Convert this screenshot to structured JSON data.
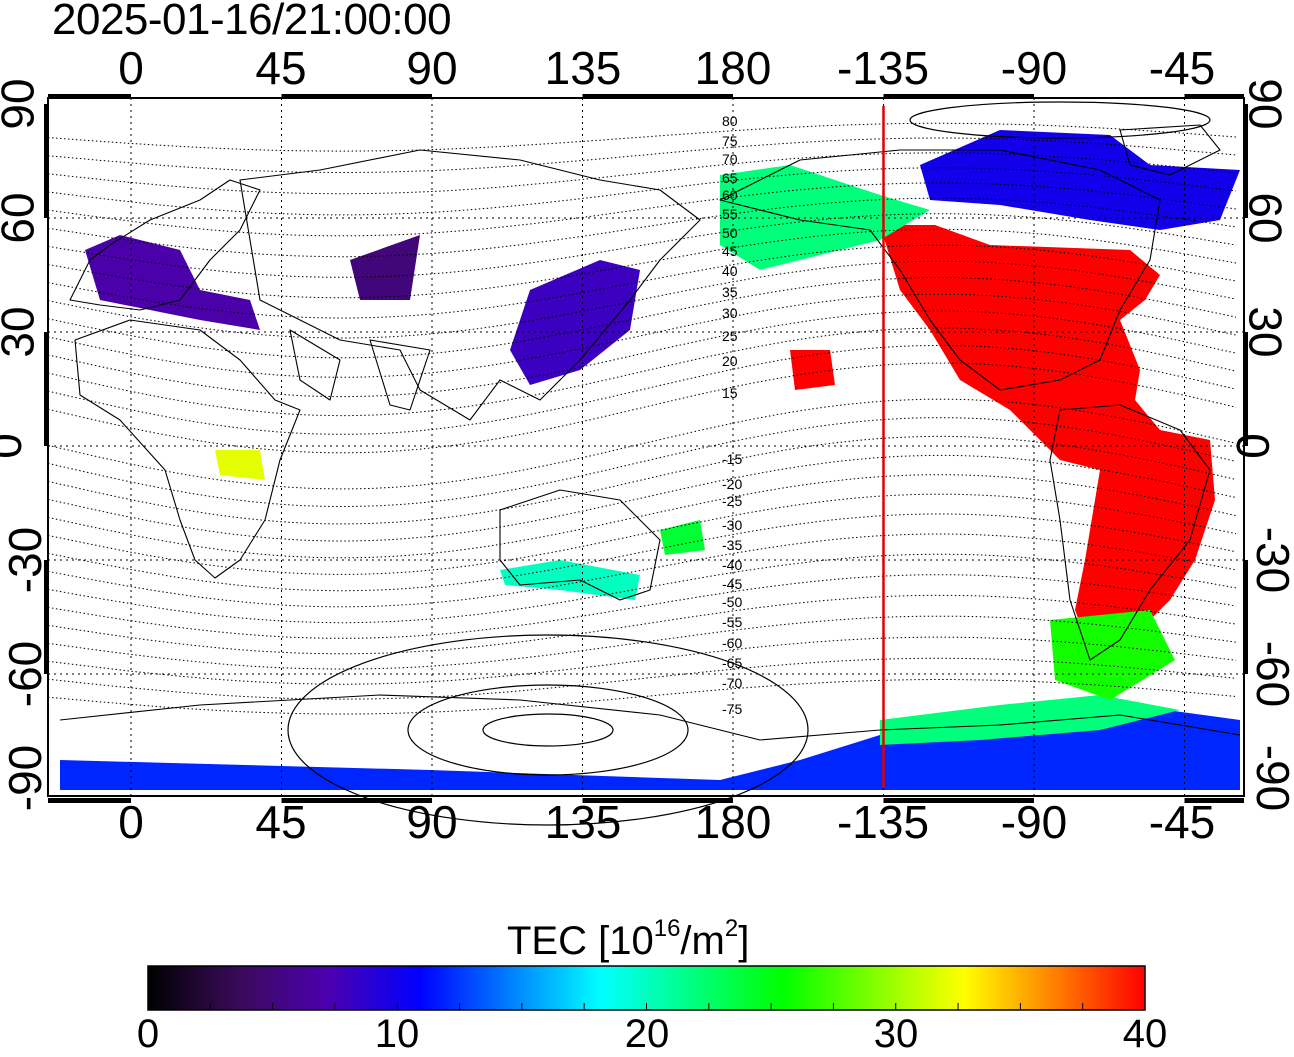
{
  "title": "2025-01-16/21:00:00",
  "top_axis_labels": [
    "0",
    "45",
    "90",
    "135",
    "180",
    "-135",
    "-90",
    "-45"
  ],
  "bottom_axis_labels": [
    "0",
    "45",
    "90",
    "135",
    "180",
    "-135",
    "-90",
    "-45"
  ],
  "left_axis_labels": [
    "90",
    "60",
    "30",
    "0",
    "-30",
    "-60",
    "-90"
  ],
  "right_axis_labels": [
    "90",
    "60",
    "30",
    "0",
    "-30",
    "-60",
    "-90"
  ],
  "contour_labels_north": [
    "80",
    "75",
    "70",
    "65",
    "60",
    "55",
    "50",
    "45",
    "40",
    "35",
    "30",
    "25",
    "20",
    "15"
  ],
  "contour_labels_south": [
    "-15",
    "-20",
    "-25",
    "-30",
    "-35",
    "-40",
    "-45",
    "-50",
    "-55",
    "-60",
    "-65",
    "-70",
    "-75"
  ],
  "terminator_longitude": -135,
  "colorbar": {
    "label_main": "TEC  [10",
    "label_exp": "16",
    "label_mid": "/m",
    "label_exp2": "2",
    "label_end": "]",
    "ticks": [
      "0",
      "10",
      "20",
      "30",
      "40"
    ],
    "range": [
      0,
      40
    ],
    "colormap": [
      "#000000",
      "#3a0a5a",
      "#4b00b0",
      "#0000ff",
      "#0080ff",
      "#00ffff",
      "#00ff80",
      "#00ff00",
      "#80ff00",
      "#ffff00",
      "#ff8000",
      "#ff0000"
    ]
  },
  "tec_regions": [
    {
      "name": "North America",
      "level": 40
    },
    {
      "name": "South America",
      "level": 40
    },
    {
      "name": "North Pacific Alaska band",
      "level": 22
    },
    {
      "name": "Europe",
      "level": 8
    },
    {
      "name": "East Asia",
      "level": 9
    },
    {
      "name": "Antarctic coast",
      "level": 12
    },
    {
      "name": "Australia",
      "level": 22
    },
    {
      "name": "Southern Africa",
      "level": 30
    }
  ]
}
